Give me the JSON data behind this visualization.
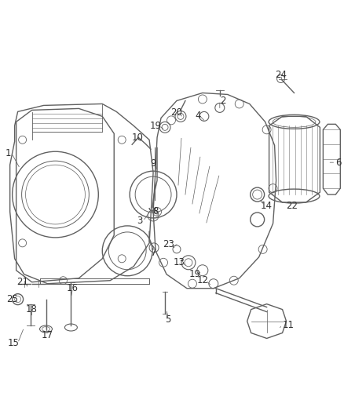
{
  "background_color": "#ffffff",
  "line_color": "#606060",
  "label_color": "#303030",
  "fig_width": 4.38,
  "fig_height": 5.33,
  "dpi": 100
}
